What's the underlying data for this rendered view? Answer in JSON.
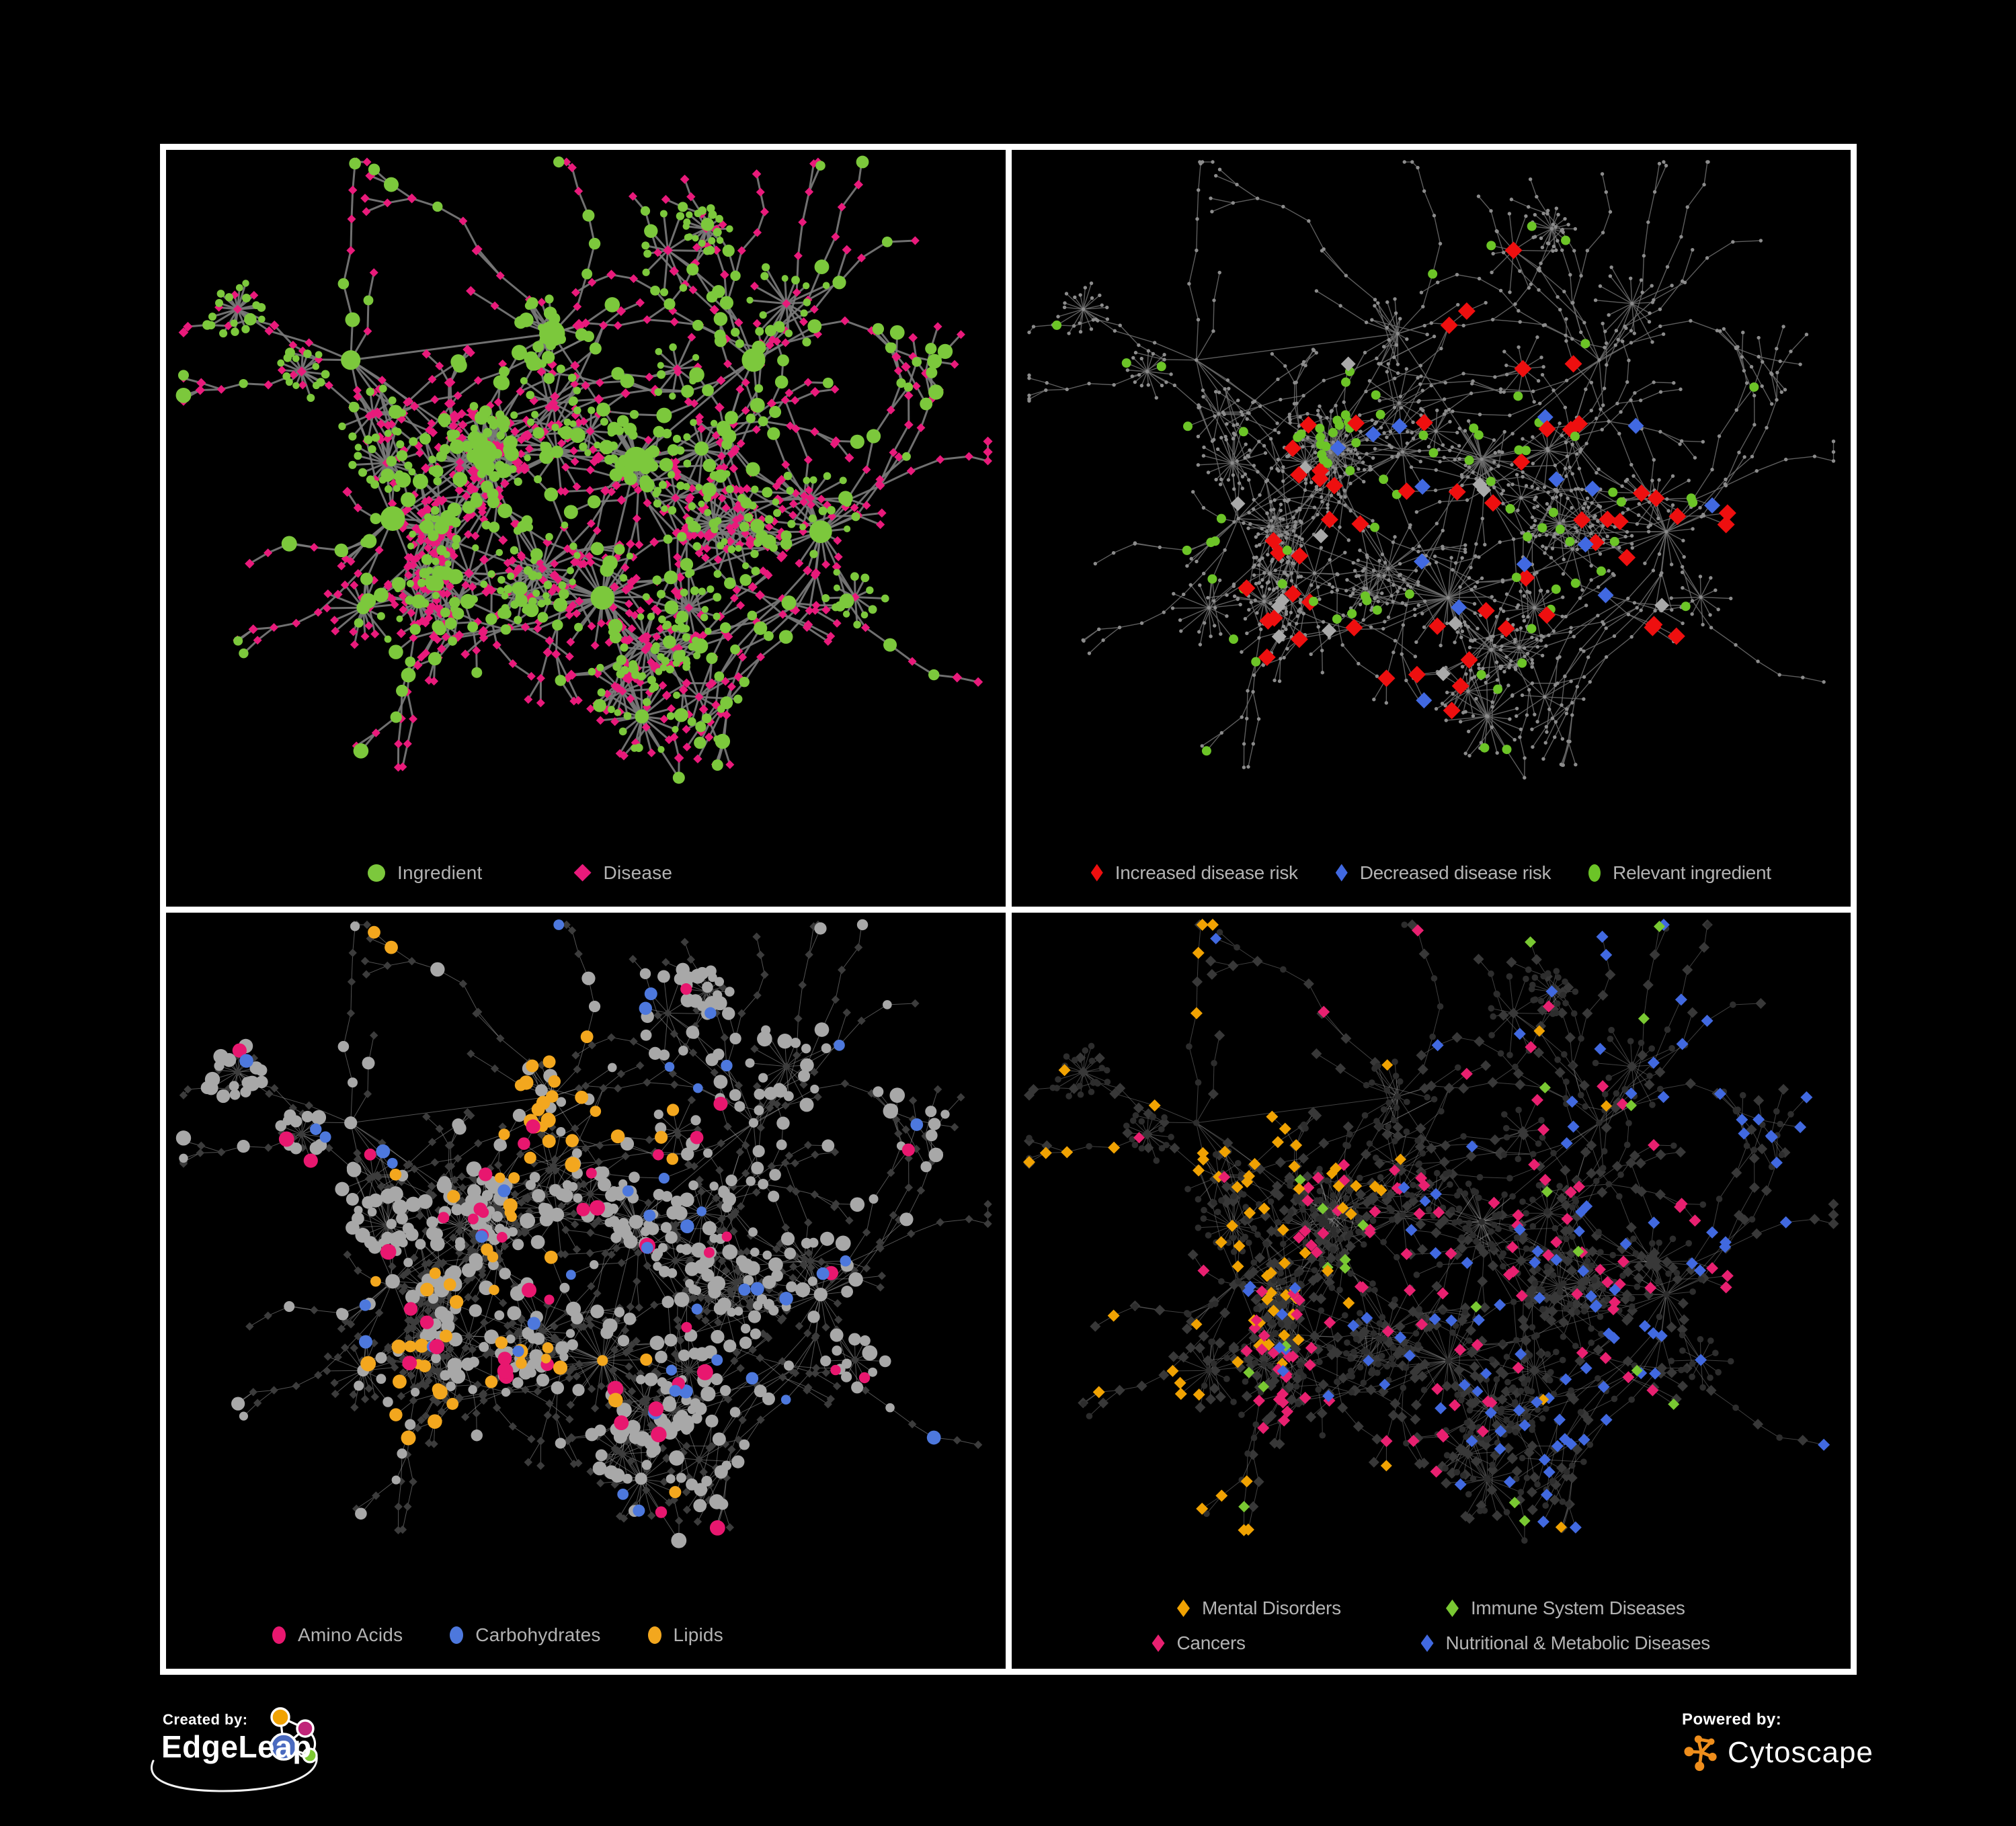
{
  "figure": {
    "background": "#000000",
    "frame_color": "#ffffff",
    "panel_background": "#000000",
    "legend_text_color": "#b3b3b3"
  },
  "network": {
    "seed": 901,
    "hubs": [
      [
        0.22,
        0.3
      ],
      [
        0.46,
        0.26
      ],
      [
        0.38,
        0.44
      ],
      [
        0.56,
        0.45
      ],
      [
        0.27,
        0.54
      ],
      [
        0.7,
        0.3
      ],
      [
        0.52,
        0.66
      ],
      [
        0.78,
        0.56
      ]
    ],
    "hub_links": [
      [
        0,
        2
      ],
      [
        1,
        2
      ],
      [
        2,
        3
      ],
      [
        2,
        4
      ],
      [
        3,
        5
      ],
      [
        3,
        6
      ],
      [
        6,
        7
      ],
      [
        1,
        3
      ],
      [
        4,
        6
      ],
      [
        0,
        1
      ]
    ],
    "clusters": [
      {
        "hub": 2,
        "count": 40,
        "radius": 60
      },
      {
        "hub": 3,
        "count": 32,
        "radius": 52
      },
      {
        "hub": 1,
        "count": 18,
        "radius": 46
      }
    ],
    "branches_min": 7,
    "branches_max": 11,
    "burst_p": 0.04,
    "cross_links": 26,
    "starbursts": [
      {
        "hub": 6,
        "count": 24,
        "radius": 82
      },
      {
        "hub": 7,
        "count": 14,
        "radius": 58
      }
    ],
    "tail": {
      "hub": 6,
      "angle": 1.25,
      "steps": 3,
      "len": 62,
      "burst": 20,
      "radius": 66
    }
  },
  "panels": [
    {
      "id": "ingredient-disease",
      "paint_seed": 11,
      "legend_rows": [
        [
          {
            "label": "Ingredient",
            "marker": "circle",
            "color": "#7cc83c"
          },
          {
            "label": "Disease",
            "marker": "diamond",
            "color": "#e91a7b"
          }
        ]
      ],
      "style": {
        "marker_w": 26,
        "marker_h": 26,
        "edge_color": "#7a7a7a",
        "edge_width": 3,
        "edge_opacity": 0.92,
        "ingredient_color": "#7cc83c",
        "disease_color": "#e91a7b"
      }
    },
    {
      "id": "disease-risk",
      "paint_seed": 22,
      "legend_rows": [
        [
          {
            "label": "Increased disease risk",
            "marker": "diamond",
            "color": "#ee0f0f"
          },
          {
            "label": "Decreased disease risk",
            "marker": "diamond",
            "color": "#4169e1"
          },
          {
            "label": "Relevant ingredient",
            "marker": "circle",
            "color": "#6cc427"
          }
        ]
      ],
      "style": {
        "marker_w": 18,
        "marker_h": 26,
        "edge_color": "#6d6d6d",
        "edge_width": 1.4,
        "edge_opacity": 0.85,
        "base_color": "#8c8c8c",
        "base_r": 2.7,
        "increased_color": "#ee0f0f",
        "decreased_color": "#4169e1",
        "neutral_color": "#a9a9a9",
        "ingredient_color": "#6cc427"
      }
    },
    {
      "id": "nutrient-classes",
      "paint_seed": 33,
      "legend_rows": [
        [
          {
            "label": "Amino Acids",
            "marker": "circle",
            "color": "#e8176f"
          },
          {
            "label": "Carbohydrates",
            "marker": "circle",
            "color": "#4d78dd"
          },
          {
            "label": "Lipids",
            "marker": "circle",
            "color": "#f3a71e"
          }
        ]
      ],
      "style": {
        "marker_w": 20,
        "marker_h": 26,
        "edge_color": "#a5a5a5",
        "edge_width": 1,
        "edge_opacity": 0.5,
        "disease_color": "#3c3c3c",
        "ingredient_base": "#a8a8a8",
        "amino_color": "#e8176f",
        "carb_color": "#4d78dd",
        "lipid_color": "#f3a71e"
      }
    },
    {
      "id": "disease-classes",
      "paint_seed": 44,
      "legend_rows": [
        [
          {
            "label": "Mental Disorders",
            "marker": "diamond",
            "color": "#f0a202"
          },
          {
            "label": "Immune System Diseases",
            "marker": "diamond",
            "color": "#79c832"
          }
        ],
        [
          {
            "label": "Cancers",
            "marker": "diamond",
            "color": "#e82070"
          },
          {
            "label": "Nutritional & Metabolic Diseases",
            "marker": "diamond",
            "color": "#4169e0"
          }
        ]
      ],
      "style": {
        "marker_w": 19,
        "marker_h": 26,
        "edge_color": "#9c9c9c",
        "edge_width": 1,
        "edge_opacity": 0.42,
        "ingredient_color": "#2d2d2d",
        "disease_base": "#383838",
        "mental_color": "#f0a202",
        "immune_color": "#79c832",
        "cancer_color": "#e82070",
        "metabolic_color": "#4169e0"
      }
    }
  ],
  "footer": {
    "created_by_label": "Created by:",
    "edgeleap_brand": "EdgeLeap",
    "powered_by_label": "Powered by:",
    "cytoscape_brand": "Cytoscape",
    "edgeleap_colors": {
      "blue": "#4a6abf",
      "orange": "#f0a202",
      "pink": "#c02579",
      "green": "#7dc832",
      "outline": "#ffffff"
    },
    "cytoscape_color": "#ef8e1c"
  }
}
